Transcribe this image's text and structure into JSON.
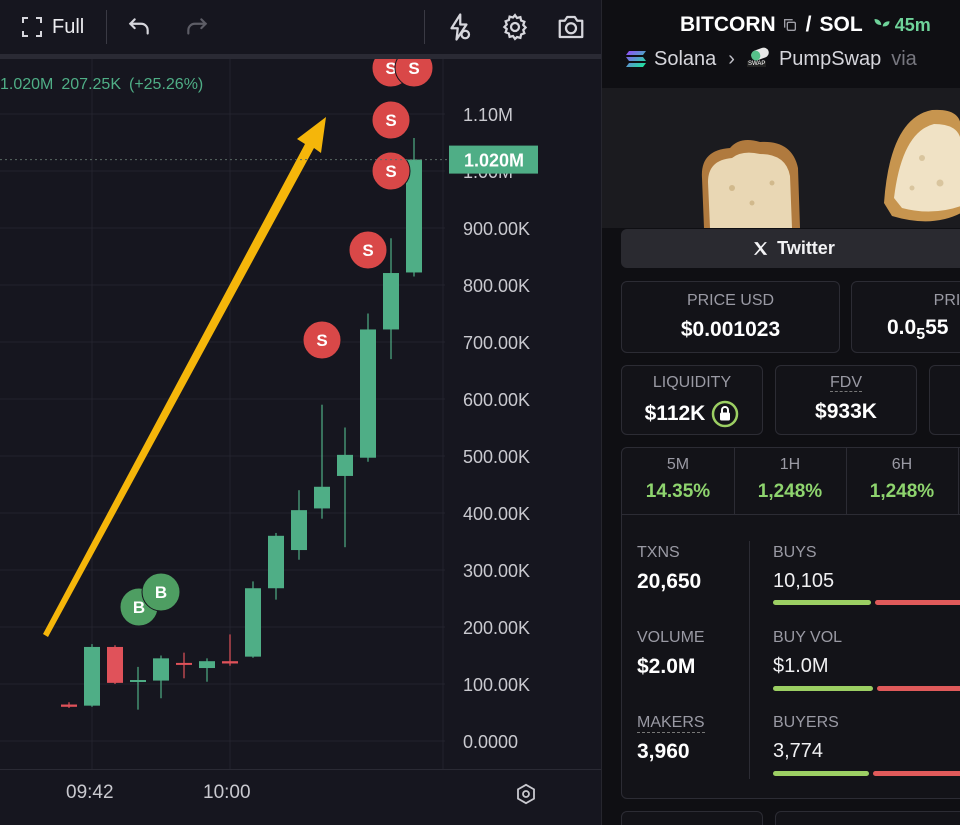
{
  "toolbar": {
    "full_label": "Full",
    "icons": [
      "fullscreen-icon",
      "undo-icon",
      "redo-icon",
      "indicator-icon",
      "gear-icon",
      "camera-icon"
    ]
  },
  "chart": {
    "ohlc": {
      "close": "1.020M",
      "change": "207.25K",
      "change_pct": "(+25.26%)"
    },
    "current_price_label": "1.020M",
    "colors": {
      "up": "#4fae86",
      "down": "#e0525a",
      "arrow": "#f5b60a",
      "buy": "#4e9e62",
      "sell": "#d94848"
    },
    "markers": {
      "buy": "B",
      "sell": "S"
    }
  },
  "chart_data": {
    "type": "candlestick",
    "y_ticks": [
      "0.0000",
      "100.00K",
      "200.00K",
      "300.00K",
      "400.00K",
      "500.00K",
      "600.00K",
      "700.00K",
      "800.00K",
      "900.00K",
      "1.00M",
      "1.10M"
    ],
    "x_ticks": [
      "09:42",
      "10:00"
    ],
    "candles": [
      {
        "o": 64,
        "h": 68,
        "l": 58,
        "c": 60
      },
      {
        "o": 62,
        "h": 170,
        "l": 60,
        "c": 165
      },
      {
        "o": 165,
        "h": 168,
        "l": 100,
        "c": 102
      },
      {
        "o": 105,
        "h": 130,
        "l": 55,
        "c": 107
      },
      {
        "o": 106,
        "h": 150,
        "l": 75,
        "c": 145
      },
      {
        "o": 137,
        "h": 155,
        "l": 110,
        "c": 134
      },
      {
        "o": 128,
        "h": 145,
        "l": 104,
        "c": 140
      },
      {
        "o": 140,
        "h": 187,
        "l": 132,
        "c": 136
      },
      {
        "o": 148,
        "h": 280,
        "l": 146,
        "c": 268
      },
      {
        "o": 268,
        "h": 365,
        "l": 248,
        "c": 360
      },
      {
        "o": 335,
        "h": 440,
        "l": 318,
        "c": 405
      },
      {
        "o": 408,
        "h": 590,
        "l": 390,
        "c": 446
      },
      {
        "o": 465,
        "h": 550,
        "l": 340,
        "c": 502
      },
      {
        "o": 497,
        "h": 750,
        "l": 490,
        "c": 722
      },
      {
        "o": 722,
        "h": 882,
        "l": 670,
        "c": 821
      },
      {
        "o": 822,
        "h": 1058,
        "l": 815,
        "c": 1020
      }
    ]
  },
  "pair": {
    "base": "BITCORN",
    "quote": "SOL",
    "age": "45m"
  },
  "route": {
    "chain": "Solana",
    "dex": "PumpSwap",
    "via": "via",
    "swap_badge": "SWAP"
  },
  "social": {
    "twitter_label": "Twitter"
  },
  "cards": {
    "price_usd": {
      "label": "PRICE USD",
      "value": "$0.001023"
    },
    "price_native": {
      "label": "PRI",
      "value_prefix": "0.0",
      "value_sub": "5",
      "value_suffix": "55"
    },
    "liquidity": {
      "label": "LIQUIDITY",
      "value": "$112K"
    },
    "fdv": {
      "label": "FDV",
      "value": "$933K"
    }
  },
  "timeframes": [
    {
      "label": "5M",
      "value": "14.35%"
    },
    {
      "label": "1H",
      "value": "1,248%"
    },
    {
      "label": "6H",
      "value": "1,248%"
    }
  ],
  "stats": {
    "txns": {
      "label": "TXNS",
      "value": "20,650"
    },
    "volume": {
      "label": "VOLUME",
      "value": "$2.0M"
    },
    "makers": {
      "label": "MAKERS",
      "value": "3,960"
    },
    "buys": {
      "label": "BUYS",
      "value": "10,105",
      "buy_fraction": 0.49
    },
    "buy_vol": {
      "label": "BUY VOL",
      "value": "$1.0M",
      "buy_fraction": 0.5
    },
    "buyers": {
      "label": "BUYERS",
      "value": "3,774",
      "buy_fraction": 0.48
    }
  }
}
